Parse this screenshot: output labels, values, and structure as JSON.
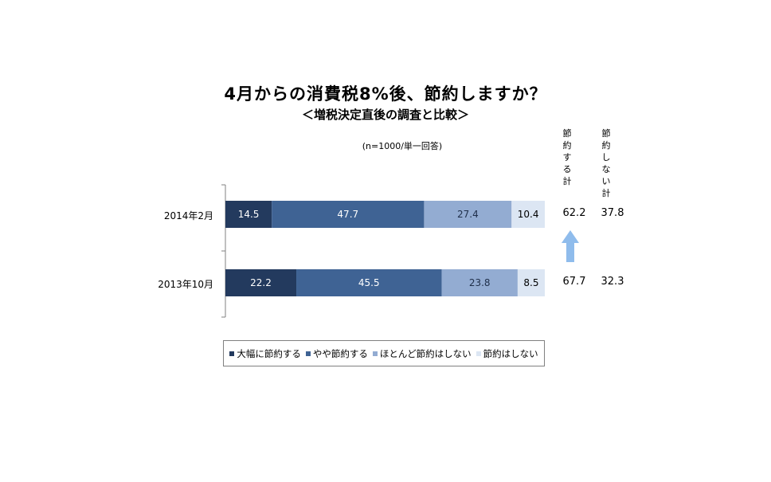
{
  "title": "4月からの消費税8%後、節約しますか？",
  "subtitle": "＜増税決定直後の調査と比較＞",
  "note": "(n=1000/単一回答)",
  "colors": {
    "series": [
      "#233a5e",
      "#3f6394",
      "#93acd2",
      "#dce6f3"
    ],
    "arrow": "#8fbcec",
    "axis": "#808080"
  },
  "column_headers": {
    "save_total": "節約する計",
    "nosave_total": "節約しない計"
  },
  "totals": [
    {
      "save": "62.2",
      "nosave": "37.8"
    },
    {
      "save": "67.7",
      "nosave": "32.3"
    }
  ],
  "chart_data": {
    "type": "bar",
    "orientation": "horizontal",
    "stacked": true,
    "percent_stacked": true,
    "categories": [
      "2014年2月",
      "2013年10月"
    ],
    "series": [
      {
        "name": "大幅に節約する",
        "values": [
          14.5,
          22.2
        ]
      },
      {
        "name": "やや節約する",
        "values": [
          47.7,
          45.5
        ]
      },
      {
        "name": "ほとんど節約はしない",
        "values": [
          27.4,
          23.8
        ]
      },
      {
        "name": "節約はしない",
        "values": [
          10.4,
          8.5
        ]
      }
    ],
    "xlim": [
      0,
      100
    ],
    "grid": false,
    "legend": "bottom"
  }
}
